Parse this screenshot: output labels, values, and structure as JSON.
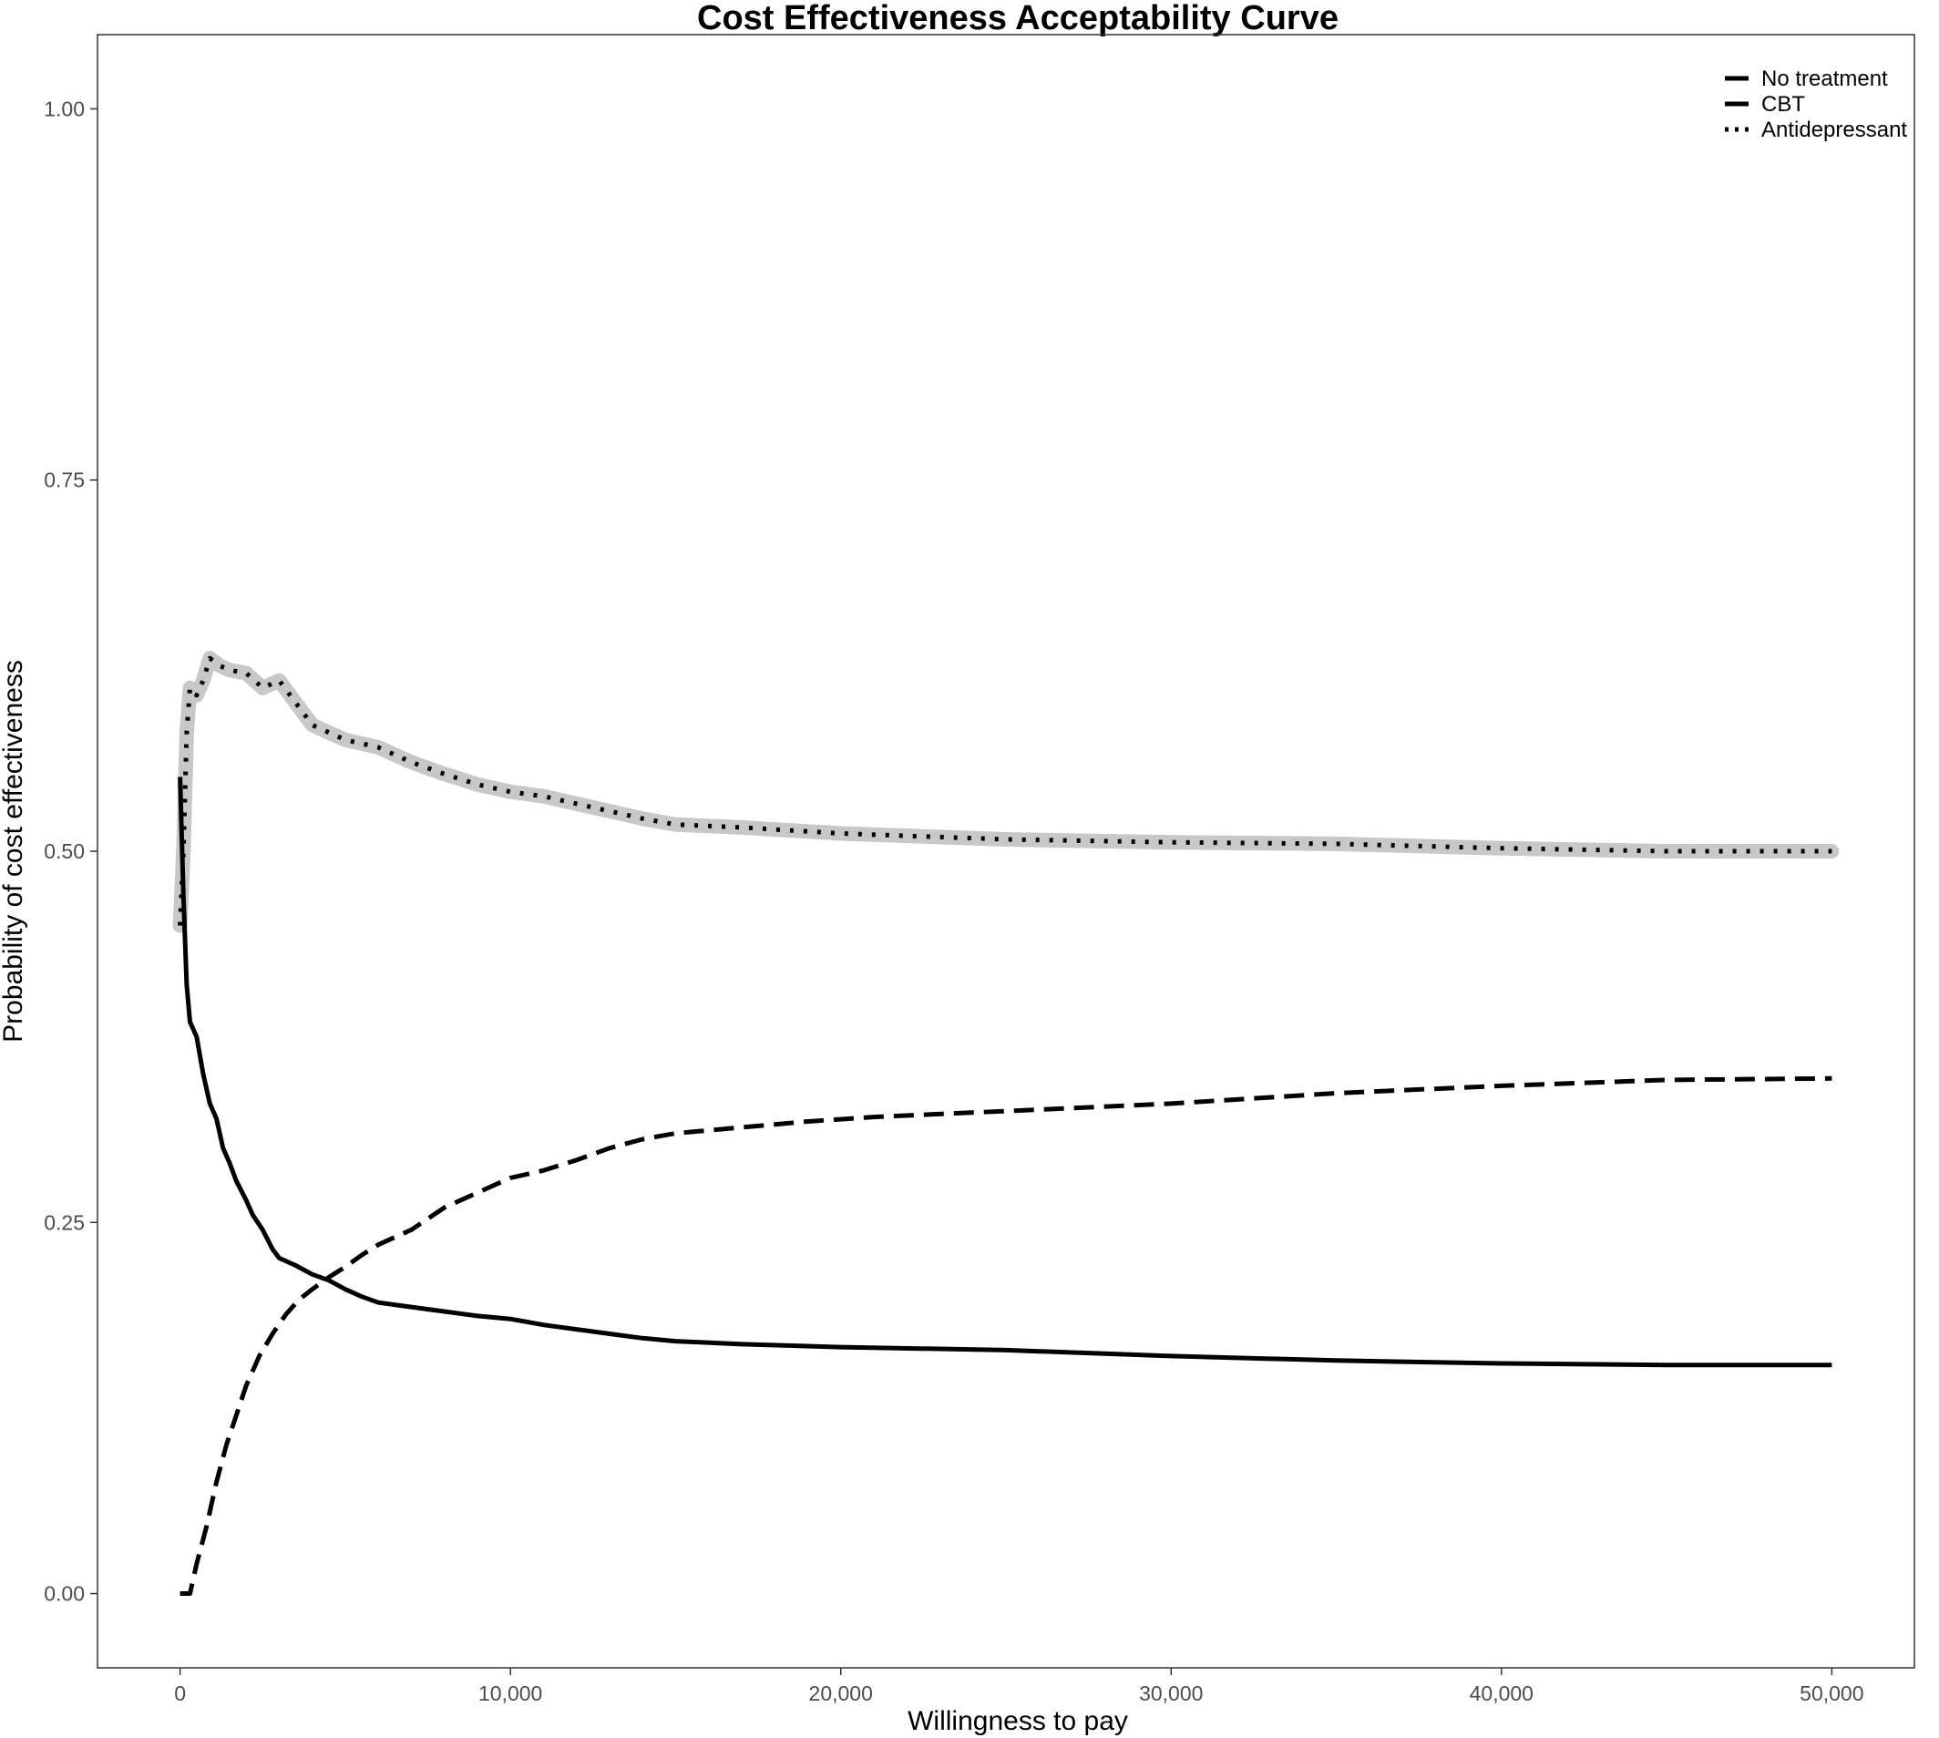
{
  "chart_data": {
    "type": "line",
    "title": "Cost Effectiveness Acceptability Curve",
    "xlabel": "Willingness to pay",
    "ylabel": "Probability of cost effectiveness",
    "xlim": [
      -2500,
      52500
    ],
    "ylim": [
      -0.05,
      1.05
    ],
    "x_ticks": [
      0,
      10000,
      20000,
      30000,
      40000,
      50000
    ],
    "x_tick_labels": [
      "0",
      "10,000",
      "20,000",
      "30,000",
      "40,000",
      "50,000"
    ],
    "y_ticks": [
      0,
      0.25,
      0.5,
      0.75,
      1
    ],
    "y_tick_labels": [
      "0.00",
      "0.25",
      "0.50",
      "0.75",
      "1.00"
    ],
    "grid": false,
    "legend_position": "top-right",
    "highlight": {
      "series": "Antidepressant",
      "color": "#c8c8c8",
      "description": "optimal strategy band"
    },
    "colors": {
      "line": "#000000",
      "highlight": "#c8c8c8",
      "axis_text": "#4d4d4d"
    },
    "series": [
      {
        "name": "No treatment",
        "style": "solid",
        "points": [
          [
            0,
            0.55
          ],
          [
            100,
            0.47
          ],
          [
            200,
            0.41
          ],
          [
            300,
            0.385
          ],
          [
            500,
            0.375
          ],
          [
            700,
            0.35
          ],
          [
            900,
            0.33
          ],
          [
            1100,
            0.32
          ],
          [
            1300,
            0.3
          ],
          [
            1500,
            0.29
          ],
          [
            1700,
            0.278
          ],
          [
            2000,
            0.265
          ],
          [
            2200,
            0.255
          ],
          [
            2500,
            0.245
          ],
          [
            2800,
            0.232
          ],
          [
            3000,
            0.226
          ],
          [
            3500,
            0.221
          ],
          [
            4000,
            0.215
          ],
          [
            4500,
            0.211
          ],
          [
            5000,
            0.205
          ],
          [
            5500,
            0.2
          ],
          [
            6000,
            0.196
          ],
          [
            7000,
            0.193
          ],
          [
            8000,
            0.19
          ],
          [
            9000,
            0.187
          ],
          [
            10000,
            0.185
          ],
          [
            11000,
            0.181
          ],
          [
            12000,
            0.178
          ],
          [
            13000,
            0.175
          ],
          [
            14000,
            0.172
          ],
          [
            15000,
            0.17
          ],
          [
            17000,
            0.168
          ],
          [
            20000,
            0.166
          ],
          [
            25000,
            0.164
          ],
          [
            30000,
            0.16
          ],
          [
            35000,
            0.157
          ],
          [
            40000,
            0.155
          ],
          [
            45000,
            0.154
          ],
          [
            50000,
            0.154
          ]
        ]
      },
      {
        "name": "CBT",
        "style": "dashed",
        "points": [
          [
            0,
            0
          ],
          [
            300,
            0
          ],
          [
            500,
            0.02
          ],
          [
            800,
            0.045
          ],
          [
            1100,
            0.075
          ],
          [
            1400,
            0.1
          ],
          [
            1700,
            0.12
          ],
          [
            2000,
            0.14
          ],
          [
            2400,
            0.16
          ],
          [
            2800,
            0.175
          ],
          [
            3200,
            0.188
          ],
          [
            3600,
            0.198
          ],
          [
            4000,
            0.205
          ],
          [
            4500,
            0.213
          ],
          [
            5000,
            0.22
          ],
          [
            5500,
            0.228
          ],
          [
            6000,
            0.235
          ],
          [
            7000,
            0.245
          ],
          [
            8000,
            0.26
          ],
          [
            9000,
            0.27
          ],
          [
            10000,
            0.28
          ],
          [
            11000,
            0.285
          ],
          [
            12000,
            0.292
          ],
          [
            13000,
            0.3
          ],
          [
            14000,
            0.306
          ],
          [
            15000,
            0.31
          ],
          [
            17000,
            0.314
          ],
          [
            19000,
            0.318
          ],
          [
            21000,
            0.321
          ],
          [
            25000,
            0.325
          ],
          [
            30000,
            0.33
          ],
          [
            35000,
            0.337
          ],
          [
            40000,
            0.342
          ],
          [
            45000,
            0.346
          ],
          [
            50000,
            0.347
          ]
        ]
      },
      {
        "name": "Antidepressant",
        "style": "dotted",
        "points": [
          [
            0,
            0.45
          ],
          [
            100,
            0.5
          ],
          [
            200,
            0.58
          ],
          [
            300,
            0.61
          ],
          [
            500,
            0.605
          ],
          [
            700,
            0.615
          ],
          [
            900,
            0.63
          ],
          [
            1200,
            0.625
          ],
          [
            1500,
            0.622
          ],
          [
            2000,
            0.62
          ],
          [
            2500,
            0.61
          ],
          [
            3000,
            0.615
          ],
          [
            3500,
            0.6
          ],
          [
            4000,
            0.585
          ],
          [
            4500,
            0.58
          ],
          [
            5000,
            0.575
          ],
          [
            6000,
            0.57
          ],
          [
            7000,
            0.56
          ],
          [
            8000,
            0.552
          ],
          [
            9000,
            0.545
          ],
          [
            10000,
            0.54
          ],
          [
            11000,
            0.537
          ],
          [
            12000,
            0.532
          ],
          [
            13000,
            0.527
          ],
          [
            14000,
            0.522
          ],
          [
            15000,
            0.518
          ],
          [
            17000,
            0.516
          ],
          [
            20000,
            0.512
          ],
          [
            25000,
            0.508
          ],
          [
            30000,
            0.506
          ],
          [
            35000,
            0.505
          ],
          [
            40000,
            0.502
          ],
          [
            45000,
            0.5
          ],
          [
            50000,
            0.5
          ]
        ]
      }
    ]
  }
}
